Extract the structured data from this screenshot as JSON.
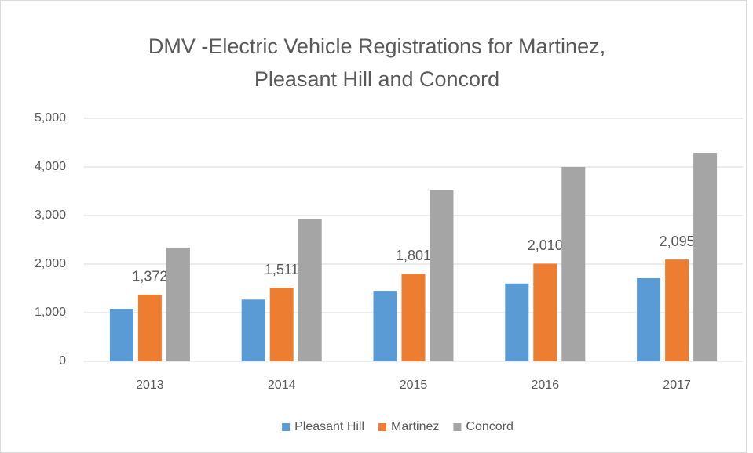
{
  "chart_data": {
    "type": "bar",
    "title": "DMV -Electric Vehicle Registrations for Martinez, Pleasant Hill and Concord",
    "categories": [
      "2013",
      "2014",
      "2015",
      "2016",
      "2017"
    ],
    "series": [
      {
        "name": "Pleasant Hill",
        "color": "#5b9bd5",
        "values": [
          1080,
          1270,
          1450,
          1600,
          1710
        ]
      },
      {
        "name": "Martinez",
        "color": "#ed7d31",
        "values": [
          1372,
          1511,
          1801,
          2010,
          2095
        ],
        "value_labels": [
          "1,372",
          "1,511",
          "1,801",
          "2,010",
          "2,095"
        ]
      },
      {
        "name": "Concord",
        "color": "#a5a5a5",
        "values": [
          2340,
          2920,
          3520,
          4000,
          4290
        ]
      }
    ],
    "ylim": [
      0,
      5000
    ],
    "yticks": [
      0,
      {
        "value": 1000,
        "label": "1,000"
      },
      {
        "value": 2000,
        "label": "2,000"
      },
      {
        "value": 3000,
        "label": "3,000"
      },
      {
        "value": 4000,
        "label": "4,000"
      },
      {
        "value": 5000,
        "label": "5,000"
      }
    ],
    "grid": true,
    "legend": "bottom"
  }
}
